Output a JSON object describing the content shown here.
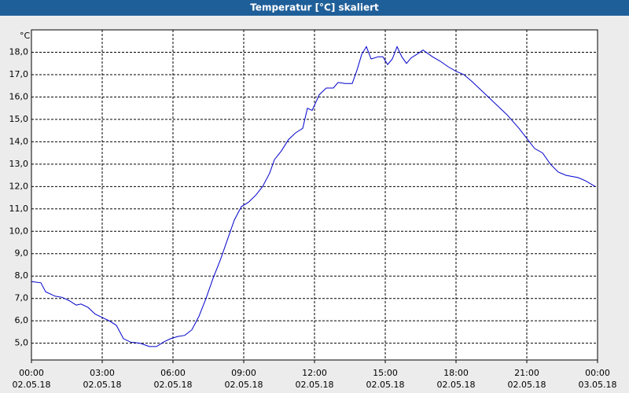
{
  "chart_data": {
    "type": "line",
    "title": "Temperatur [°C] skaliert",
    "unit": "°C",
    "x": [
      0,
      0.4,
      0.6,
      1.0,
      1.3,
      1.6,
      1.9,
      2.1,
      2.4,
      2.7,
      3.0,
      3.3,
      3.6,
      3.9,
      4.2,
      4.6,
      5.0,
      5.3,
      5.6,
      5.9,
      6.2,
      6.5,
      6.8,
      7.1,
      7.4,
      7.7,
      8.0,
      8.3,
      8.6,
      8.9,
      9.2,
      9.5,
      9.8,
      10.1,
      10.3,
      10.6,
      10.9,
      11.2,
      11.5,
      11.7,
      11.9,
      12.2,
      12.5,
      12.8,
      13.0,
      13.3,
      13.6,
      13.8,
      14.0,
      14.2,
      14.4,
      14.7,
      14.9,
      15.1,
      15.3,
      15.5,
      15.7,
      15.9,
      16.1,
      16.4,
      16.6,
      17.0,
      17.33,
      17.67,
      18.0,
      18.33,
      18.67,
      19.17,
      19.67,
      20.17,
      20.67,
      21.0,
      21.33,
      21.67,
      22.0,
      22.33,
      22.67,
      23.17,
      23.5,
      23.9
    ],
    "values": [
      7.75,
      7.7,
      7.3,
      7.1,
      7.05,
      6.9,
      6.7,
      6.75,
      6.6,
      6.3,
      6.15,
      6.0,
      5.8,
      5.2,
      5.05,
      5.0,
      4.85,
      4.85,
      5.05,
      5.2,
      5.3,
      5.35,
      5.6,
      6.2,
      7.0,
      7.9,
      8.7,
      9.6,
      10.5,
      11.1,
      11.3,
      11.6,
      12.0,
      12.6,
      13.2,
      13.6,
      14.1,
      14.4,
      14.6,
      15.5,
      15.4,
      16.1,
      16.4,
      16.4,
      16.65,
      16.6,
      16.6,
      17.2,
      17.9,
      18.25,
      17.7,
      17.8,
      17.8,
      17.45,
      17.7,
      18.25,
      17.8,
      17.5,
      17.75,
      17.95,
      18.1,
      17.8,
      17.6,
      17.35,
      17.15,
      17.0,
      16.7,
      16.2,
      15.7,
      15.2,
      14.6,
      14.15,
      13.7,
      13.5,
      13.0,
      12.65,
      12.5,
      12.4,
      12.25,
      12.0
    ],
    "color": "#0000cc",
    "xlim": [
      0,
      24
    ],
    "xticks": [
      {
        "value": 0,
        "label": "00:00"
      },
      {
        "value": 3,
        "label": "03:00"
      },
      {
        "value": 6,
        "label": "06:00"
      },
      {
        "value": 9,
        "label": "09:00"
      },
      {
        "value": 12,
        "label": "12:00"
      },
      {
        "value": 15,
        "label": "15:00"
      },
      {
        "value": 18,
        "label": "18:00"
      },
      {
        "value": 21,
        "label": "21:00"
      },
      {
        "value": 24,
        "label": "00:00"
      }
    ],
    "xtick_dates": [
      "02.05.18",
      "02.05.18",
      "02.05.18",
      "02.05.18",
      "02.05.18",
      "02.05.18",
      "02.05.18",
      "02.05.18",
      "03.05.18"
    ],
    "ylim": [
      4.25,
      19.0
    ],
    "yticks": [
      {
        "value": 5,
        "label": "5,0"
      },
      {
        "value": 6,
        "label": "6,0"
      },
      {
        "value": 7,
        "label": "7,0"
      },
      {
        "value": 8,
        "label": "8,0"
      },
      {
        "value": 9,
        "label": "9,0"
      },
      {
        "value": 10,
        "label": "10,0"
      },
      {
        "value": 11,
        "label": "11,0"
      },
      {
        "value": 12,
        "label": "12,0"
      },
      {
        "value": 13,
        "label": "13,0"
      },
      {
        "value": 14,
        "label": "14,0"
      },
      {
        "value": 15,
        "label": "15,0"
      },
      {
        "value": 16,
        "label": "16,0"
      },
      {
        "value": 17,
        "label": "17,0"
      },
      {
        "value": 18,
        "label": "18,0"
      }
    ],
    "grid": true
  }
}
